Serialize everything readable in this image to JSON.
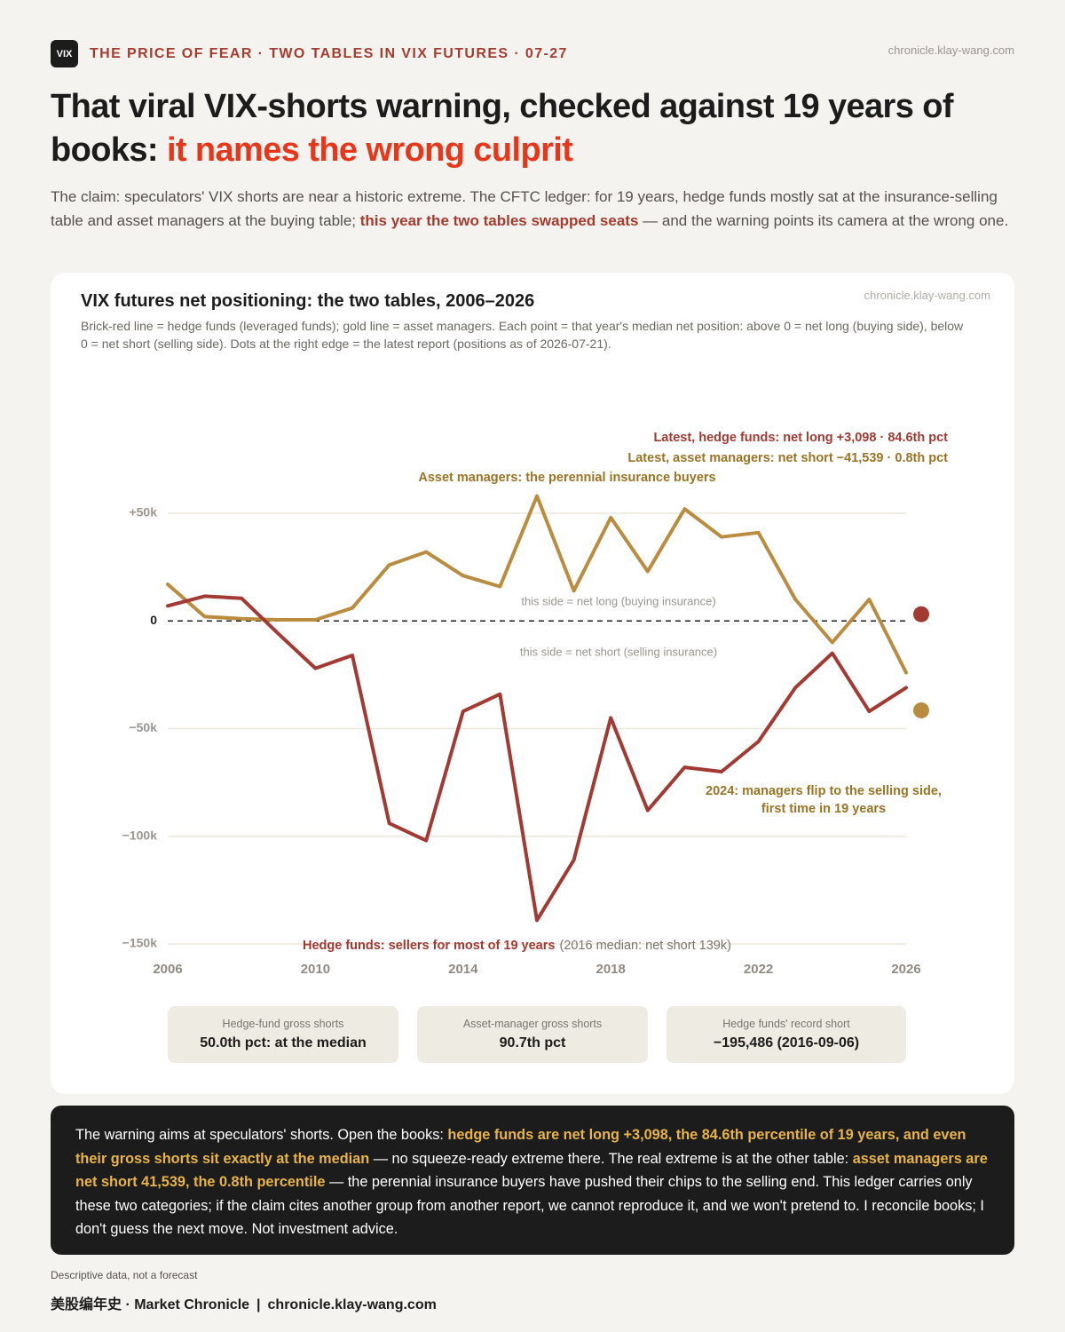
{
  "header": {
    "logo": "VIX",
    "kicker": "THE PRICE OF FEAR · TWO TABLES IN VIX FUTURES · 07-27",
    "site": "chronicle.klay-wang.com",
    "title": "That viral VIX-shorts warning, checked against 19 years of books:",
    "title_accent": "it names the wrong culprit",
    "intro": [
      "The claim: speculators' VIX shorts are near a historic extreme. The CFTC ledger: for 19 years, hedge funds mostly sat at the insurance-selling table and asset managers at the buying table;",
      "this year the two tables swapped seats",
      "— and the warning points its camera at the wrong one."
    ]
  },
  "chart_data": {
    "type": "line",
    "title": "VIX futures net positioning: the two tables, 2006–2026",
    "site": "chronicle.klay-wang.com",
    "subtitle": "Brick-red line = hedge funds (leveraged funds); gold line = asset managers. Each point = that year's median net position: above 0 = net long (buying side), below 0 = net short (selling side). Dots at the right edge = the latest report (positions as of 2026-07-21).",
    "x": [
      2006,
      2007,
      2008,
      2009,
      2010,
      2011,
      2012,
      2013,
      2014,
      2015,
      2016,
      2017,
      2018,
      2019,
      2020,
      2021,
      2022,
      2023,
      2024,
      2025,
      2026
    ],
    "xlim": [
      2006,
      2026
    ],
    "xticks": [
      2006,
      2010,
      2014,
      2018,
      2022,
      2026
    ],
    "ylim": [
      -150000,
      60000
    ],
    "yticks": [
      {
        "value": 50000,
        "label": "+50k"
      },
      0,
      {
        "value": -50000,
        "label": "−50k"
      },
      {
        "value": -100000,
        "label": "−100k"
      },
      {
        "value": -150000,
        "label": "−150k"
      }
    ],
    "grid": true,
    "series": [
      {
        "color": "#a23a33",
        "values": [
          7000,
          11500,
          10500,
          -6000,
          -22000,
          -16000,
          -94000,
          -102000,
          -42000,
          -34000,
          -139000,
          -111000,
          -45000,
          -88000,
          -68000,
          -70000,
          -56000,
          -31000,
          -15000,
          -42000,
          -31000
        ],
        "latest": 3098,
        "latest_label": "Latest, hedge funds: net long +3,098 · 84.6th pct",
        "annotation": [
          "Hedge funds: sellers for most of 19 years",
          "(2016 median: net short 139k)"
        ]
      },
      {
        "color": "#b98c3f",
        "values": [
          17000,
          2000,
          1000,
          500,
          500,
          6000,
          26000,
          32000,
          21000,
          16000,
          58000,
          14000,
          48000,
          23000,
          52000,
          39000,
          41000,
          10000,
          -10000,
          10000,
          -24000
        ],
        "latest": -41539,
        "latest_label": "Latest, asset managers: net short −41,539 · 0.8th pct",
        "annotation": [
          "Asset managers: the perennial insurance buyers"
        ],
        "note": [
          "2024: managers flip to the selling side,",
          "first time in 19 years"
        ]
      }
    ],
    "zone_labels": [
      "this side = net long (buying insurance)",
      "this side = net short (selling insurance)"
    ],
    "stats": [
      {
        "label": "Hedge-fund gross shorts",
        "value": "50.0th pct: at the median"
      },
      {
        "label": "Asset-manager gross shorts",
        "value": "90.7th pct"
      },
      {
        "label": "Hedge funds' record short",
        "value": "−195,486 (2016-09-06)"
      }
    ]
  },
  "summary": [
    "The warning aims at speculators' shorts. Open the books:",
    "hedge funds are net long +3,098, the 84.6th percentile of 19 years, and even their gross shorts sit exactly at the median",
    "— no squeeze-ready extreme there. The real extreme is at the other table:",
    "asset managers are net short 41,539, the 0.8th percentile",
    "— the perennial insurance buyers have pushed their chips to the selling end. This ledger carries only these two categories; if the claim cites another group from another report, we cannot reproduce it, and we won't pretend to. I reconcile books; I don't guess the next move. Not investment advice."
  ],
  "footer": {
    "disclaimer": "Descriptive data, not a forecast",
    "brand": "美股编年史 · Market Chronicle",
    "separator": "|",
    "site": "chronicle.klay-wang.com"
  }
}
